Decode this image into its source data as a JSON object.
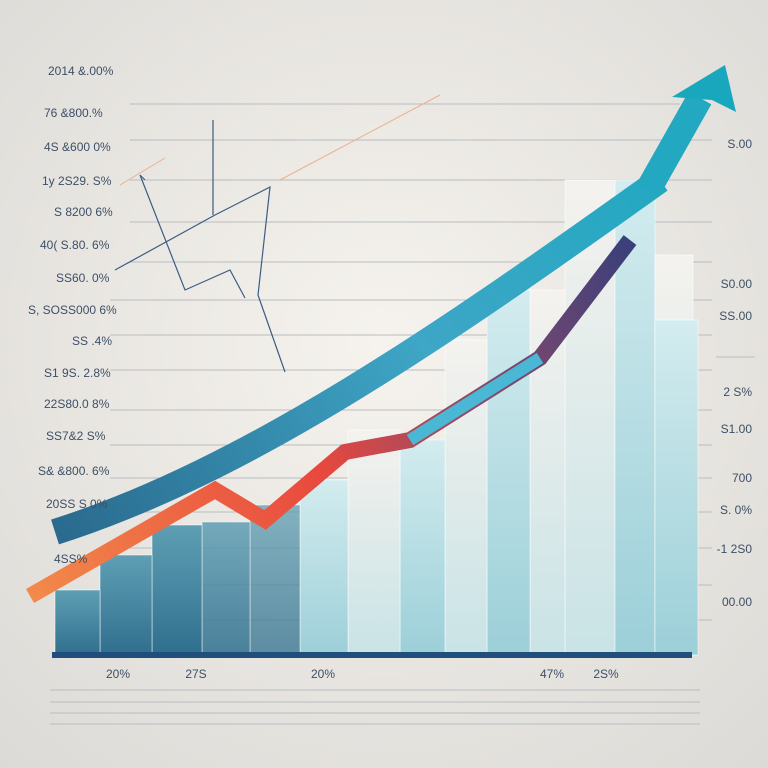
{
  "left_labels": [
    "2014 &.00%",
    "76 &800.%",
    "4S &600 0%",
    "1y 2S29. S%",
    "S 8200 6%",
    "40( S.80. 6%",
    "SS60. 0%",
    "S, SOSS000 6%",
    "SS .4%",
    "S1 9S. 2.8%",
    "22S80.0 8%",
    "SS7&2 S%",
    "S& &800. 6%",
    "20SS S 0%",
    "4SS%"
  ],
  "right_labels": [
    "S.00",
    "S0.00",
    "SS.00",
    "2 S%",
    "S1.00",
    "700",
    "S. 0%",
    "-1 2S0",
    "00.00"
  ],
  "bottom_labels": [
    "20%",
    "27S",
    "20%",
    "47%",
    "2S%"
  ]
}
